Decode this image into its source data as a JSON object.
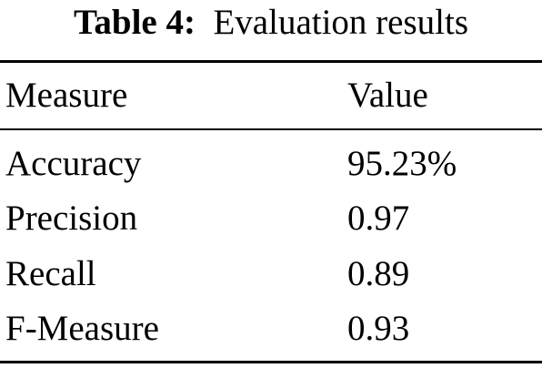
{
  "table": {
    "caption_label": "Table 4:",
    "caption_text": "Evaluation results",
    "headers": [
      "Measure",
      "Value"
    ],
    "rows": [
      [
        "Accuracy",
        "95.23%"
      ],
      [
        "Precision",
        "0.97"
      ],
      [
        "Recall",
        "0.89"
      ],
      [
        "F-Measure",
        "0.93"
      ]
    ]
  }
}
